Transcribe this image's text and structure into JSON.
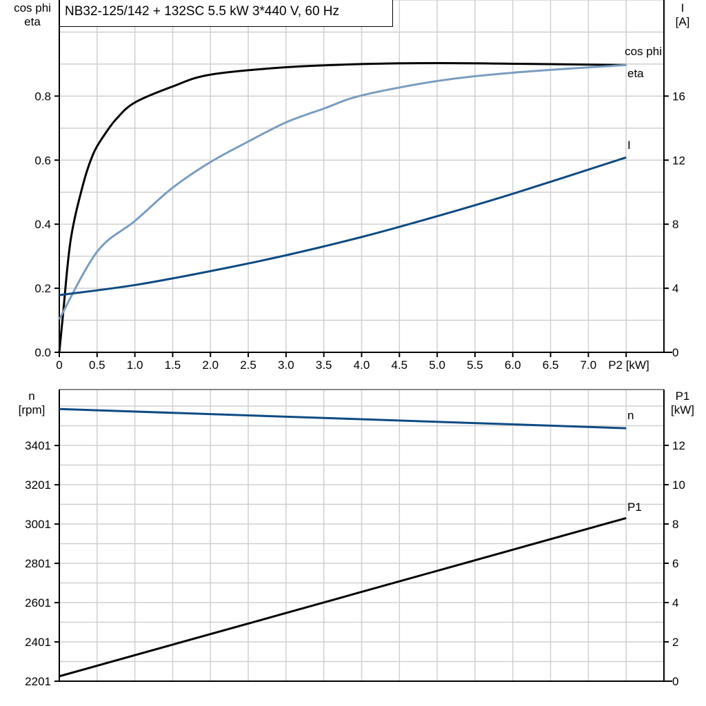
{
  "title": "NB32-125/142 + 132SC   5.5 kW   3*440 V, 60 Hz",
  "colors": {
    "eta": "#000000",
    "cos_phi": "#7b9dc0",
    "I": "#0d4a82",
    "n": "#0d4a82",
    "P1": "#000000",
    "grid": "#d0d0d0"
  },
  "chart_data": [
    {
      "type": "line",
      "xlabel": "P2 [kW]",
      "xlim": [
        0,
        8
      ],
      "xticks": [
        "0",
        "0.5",
        "1.0",
        "1.5",
        "2.0",
        "2.5",
        "3.0",
        "3.5",
        "4.0",
        "4.5",
        "5.0",
        "5.5",
        "6.0",
        "6.5",
        "7.0"
      ],
      "ylabel_left": [
        "cos phi",
        "eta"
      ],
      "ylim_left": [
        0,
        1.1
      ],
      "yticks_left": [
        "0.0",
        "0.2",
        "0.4",
        "0.6",
        "0.8"
      ],
      "ylabel_right": [
        "I",
        "[A]"
      ],
      "ylim_right": [
        0,
        22
      ],
      "yticks_right": [
        "0",
        "4",
        "8",
        "12",
        "16"
      ],
      "grid": true,
      "series": [
        {
          "name": "eta",
          "axis": "left",
          "x": [
            0,
            0.05,
            0.15,
            0.31,
            0.45,
            0.6,
            0.76,
            1.0,
            1.5,
            2.0,
            3.0,
            4.0,
            5.0,
            6.0,
            7.5
          ],
          "y": [
            0,
            0.12,
            0.35,
            0.52,
            0.62,
            0.68,
            0.73,
            0.78,
            0.83,
            0.867,
            0.89,
            0.9,
            0.903,
            0.901,
            0.897
          ]
        },
        {
          "name": "cos phi",
          "axis": "left",
          "x": [
            0,
            0.5,
            1.0,
            1.5,
            2.0,
            2.5,
            3.0,
            3.5,
            4.0,
            5.0,
            6.0,
            7.5
          ],
          "y": [
            0.103,
            0.314,
            0.41,
            0.514,
            0.594,
            0.658,
            0.718,
            0.761,
            0.802,
            0.847,
            0.873,
            0.897
          ]
        },
        {
          "name": "I",
          "axis": "right",
          "x": [
            0,
            1.0,
            2.0,
            3.0,
            4.0,
            5.0,
            6.0,
            7.5
          ],
          "y": [
            3.57,
            4.2,
            5.07,
            6.06,
            7.2,
            8.5,
            9.9,
            12.17
          ]
        }
      ]
    },
    {
      "type": "line",
      "xlim": [
        0,
        8
      ],
      "ylabel_left": [
        "n",
        "[rpm]"
      ],
      "ylim_left": [
        2201,
        3686
      ],
      "yticks_left": [
        "2201",
        "2401",
        "2601",
        "2801",
        "3001",
        "3201",
        "3401"
      ],
      "ylabel_right": [
        "P1",
        "[kW]"
      ],
      "ylim_right": [
        0,
        14.84
      ],
      "yticks_right": [
        "0",
        "2",
        "4",
        "6",
        "8",
        "10",
        "12"
      ],
      "grid": true,
      "series": [
        {
          "name": "n",
          "axis": "left",
          "x": [
            0,
            7.5
          ],
          "y": [
            3587,
            3489
          ]
        },
        {
          "name": "P1",
          "axis": "right",
          "x": [
            0,
            7.5
          ],
          "y": [
            0.25,
            8.3
          ]
        }
      ]
    }
  ]
}
